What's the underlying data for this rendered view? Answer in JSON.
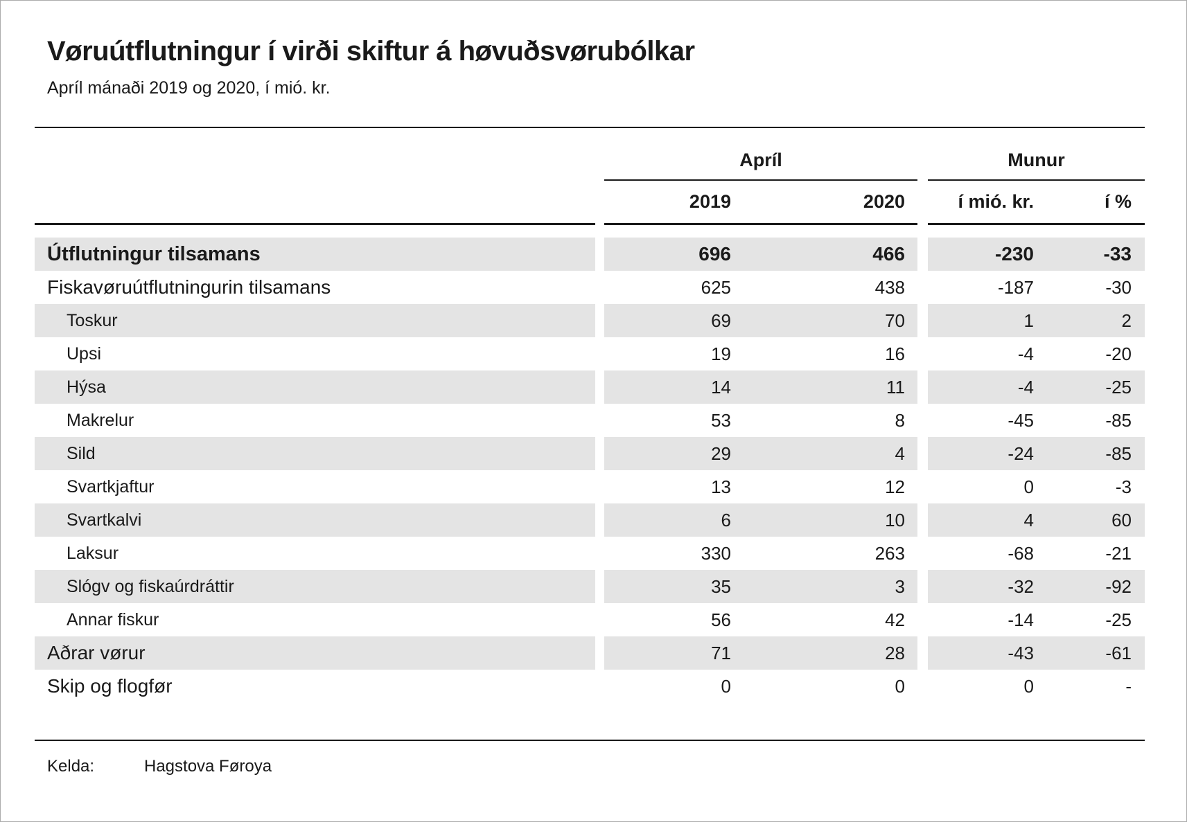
{
  "header": {
    "title": "Vøruútflutningur í virði skiftur á høvuðsvørubólkar",
    "subtitle": "Apríl mánaði 2019 og 2020, í mió. kr."
  },
  "chart_data": {
    "type": "table",
    "title": "Vøruútflutningur í virði skiftur á høvuðsvørubólkar",
    "subtitle": "Apríl mánaði 2019 og 2020, í mió. kr.",
    "unit": "mió. kr.",
    "column_groups": [
      "Apríl",
      "Munur"
    ],
    "columns": [
      "2019",
      "2020",
      "í mió. kr.",
      "í %"
    ],
    "rows": [
      {
        "label": "Útflutningur tilsamans",
        "level": 0,
        "bold": true,
        "values": [
          696,
          466,
          -230,
          -33
        ]
      },
      {
        "label": "Fiskavøruútflutningurin tilsamans",
        "level": 0,
        "bold": false,
        "values": [
          625,
          438,
          -187,
          -30
        ]
      },
      {
        "label": "Toskur",
        "level": 1,
        "bold": false,
        "values": [
          69,
          70,
          1,
          2
        ]
      },
      {
        "label": "Upsi",
        "level": 1,
        "bold": false,
        "values": [
          19,
          16,
          -4,
          -20
        ]
      },
      {
        "label": "Hýsa",
        "level": 1,
        "bold": false,
        "values": [
          14,
          11,
          -4,
          -25
        ]
      },
      {
        "label": "Makrelur",
        "level": 1,
        "bold": false,
        "values": [
          53,
          8,
          -45,
          -85
        ]
      },
      {
        "label": "Sild",
        "level": 1,
        "bold": false,
        "values": [
          29,
          4,
          -24,
          -85
        ]
      },
      {
        "label": "Svartkjaftur",
        "level": 1,
        "bold": false,
        "values": [
          13,
          12,
          0,
          -3
        ]
      },
      {
        "label": "Svartkalvi",
        "level": 1,
        "bold": false,
        "values": [
          6,
          10,
          4,
          60
        ]
      },
      {
        "label": "Laksur",
        "level": 1,
        "bold": false,
        "values": [
          330,
          263,
          -68,
          -21
        ]
      },
      {
        "label": "Slógv og fiskaúrdráttir",
        "level": 1,
        "bold": false,
        "values": [
          35,
          3,
          -32,
          -92
        ]
      },
      {
        "label": "Annar fiskur",
        "level": 1,
        "bold": false,
        "values": [
          56,
          42,
          -14,
          -25
        ]
      },
      {
        "label": "Aðrar vørur",
        "level": 0,
        "bold": false,
        "values": [
          71,
          28,
          -43,
          -61
        ]
      },
      {
        "label": "Skip og flogfør",
        "level": 0,
        "bold": false,
        "values": [
          0,
          0,
          0,
          "-"
        ]
      }
    ]
  },
  "footer": {
    "source_label": "Kelda:",
    "source_value": "Hagstova Føroya"
  },
  "colors": {
    "stripe": "#e4e4e4",
    "text": "#1a1a1a",
    "line": "#1a1a1a",
    "page_border": "#ababab"
  }
}
